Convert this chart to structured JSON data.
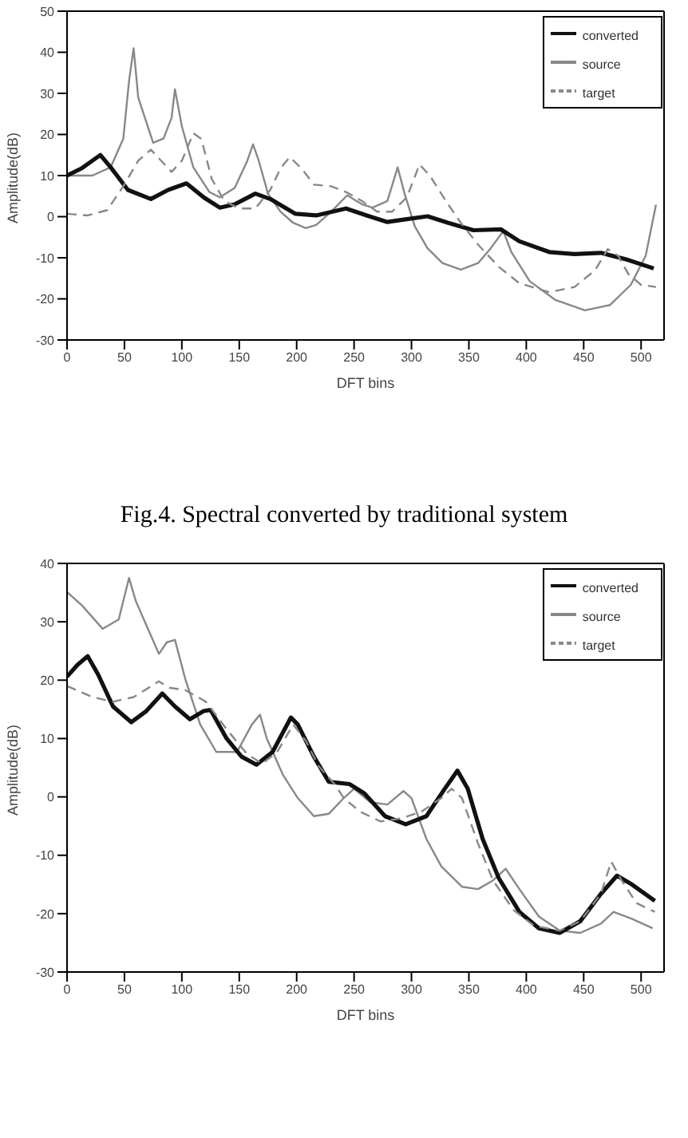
{
  "chart_data": [
    {
      "type": "line",
      "xlabel": "DFT bins",
      "ylabel": "Amplitude(dB)",
      "xlim": [
        0,
        520
      ],
      "ylim": [
        -30,
        50
      ],
      "xticks": [
        0,
        50,
        100,
        150,
        200,
        250,
        300,
        350,
        400,
        450,
        500
      ],
      "yticks": [
        -30,
        -20,
        -10,
        0,
        10,
        20,
        30,
        40,
        50
      ],
      "grid": false,
      "legend": "top right",
      "marker": "none",
      "annotations": [
        "Fig.4. Spectral converted by traditional system"
      ],
      "series": [
        {
          "name": "source",
          "color": "#888888",
          "line_style": "solid",
          "x": [
            0,
            22,
            38,
            49,
            54,
            58,
            62,
            75,
            84,
            91,
            94,
            100,
            110,
            124,
            133,
            146,
            157,
            162,
            167,
            175,
            186,
            197,
            208,
            217,
            230,
            244,
            257,
            266,
            279,
            288,
            294,
            303,
            314,
            327,
            343,
            358,
            369,
            380,
            387,
            403,
            425,
            451,
            473,
            491,
            504,
            513
          ],
          "values": [
            10,
            10,
            12,
            19,
            33,
            41,
            29,
            18,
            19,
            24,
            31,
            22,
            12,
            6,
            4.7,
            7,
            13.6,
            17.6,
            13.6,
            5.6,
            1.2,
            -1.5,
            -2.8,
            -2,
            1.2,
            5.2,
            3,
            2.2,
            3.8,
            12,
            5.6,
            -2.4,
            -7.7,
            -11.3,
            -12.9,
            -11.3,
            -7.7,
            -3.5,
            -8.6,
            -15.7,
            -20.2,
            -22.8,
            -21.5,
            -16.6,
            -9.5,
            2.9
          ]
        },
        {
          "name": "converted",
          "color": "#111111",
          "line_style": "solid",
          "x": [
            0,
            13,
            29,
            38,
            53,
            73,
            88,
            104,
            119,
            133,
            146,
            164,
            177,
            199,
            217,
            243,
            261,
            279,
            296,
            314,
            332,
            354,
            378,
            394,
            420,
            442,
            465,
            487,
            511
          ],
          "values": [
            10,
            11.8,
            15,
            12,
            6.5,
            4.3,
            6.5,
            8.1,
            4.7,
            2.2,
            3,
            5.6,
            4.3,
            0.7,
            0.3,
            2,
            0.3,
            -1.3,
            -0.6,
            0.1,
            -1.5,
            -3.3,
            -3.1,
            -6,
            -8.6,
            -9.1,
            -8.8,
            -10.4,
            -12.6
          ]
        },
        {
          "name": "target",
          "color": "#888888",
          "line_style": "dashed",
          "x": [
            0,
            18,
            35,
            49,
            62,
            73,
            82,
            91,
            100,
            110,
            117,
            126,
            137,
            150,
            164,
            177,
            186,
            194,
            204,
            215,
            230,
            243,
            257,
            270,
            283,
            296,
            307,
            316,
            330,
            343,
            358,
            376,
            394,
            420,
            442,
            460,
            471,
            480,
            489,
            500,
            513
          ],
          "values": [
            0.7,
            0.3,
            1.6,
            7.4,
            13.6,
            16.3,
            13.6,
            10.9,
            13.6,
            20.3,
            18.9,
            9.2,
            3.8,
            2,
            2,
            6.5,
            11.8,
            14.5,
            11.8,
            7.8,
            7.4,
            6,
            3.8,
            1.2,
            1.2,
            4.7,
            12.7,
            10,
            3.8,
            -1.5,
            -6.8,
            -12.2,
            -16.2,
            -18.4,
            -17.1,
            -13,
            -7.9,
            -9.5,
            -14,
            -16.6,
            -17.1
          ]
        }
      ]
    },
    {
      "type": "line",
      "xlabel": "DFT bins",
      "ylabel": "Amplitude(dB)",
      "xlim": [
        0,
        520
      ],
      "ylim": [
        -30,
        40
      ],
      "xticks": [
        0,
        50,
        100,
        150,
        200,
        250,
        300,
        350,
        400,
        450,
        500
      ],
      "yticks": [
        -30,
        -20,
        -10,
        0,
        10,
        20,
        30,
        40
      ],
      "grid": false,
      "legend": "top right",
      "marker": "none",
      "series": [
        {
          "name": "source",
          "color": "#888888",
          "line_style": "solid",
          "x": [
            0,
            13,
            31,
            45,
            54,
            60,
            72,
            80,
            87,
            94,
            103,
            116,
            130,
            148,
            161,
            168,
            174,
            188,
            201,
            215,
            228,
            241,
            250,
            264,
            279,
            293,
            300,
            313,
            326,
            344,
            358,
            371,
            382,
            394,
            411,
            429,
            447,
            465,
            476,
            492,
            510
          ],
          "values": [
            35.1,
            32.8,
            28.8,
            30.4,
            37.5,
            33.5,
            28.1,
            24.5,
            26.5,
            26.9,
            20.2,
            12.4,
            7.7,
            7.7,
            12.4,
            14.1,
            10,
            3.8,
            -0.2,
            -3.3,
            -2.9,
            -0.2,
            1.4,
            -0.9,
            -1.3,
            1,
            -0.2,
            -7.2,
            -11.9,
            -15.4,
            -15.8,
            -14.3,
            -12.3,
            -15.8,
            -20.5,
            -22.9,
            -23.3,
            -21.7,
            -19.7,
            -20.9,
            -22.5
          ]
        },
        {
          "name": "converted",
          "color": "#111111",
          "line_style": "solid",
          "x": [
            0,
            9,
            18,
            27,
            40,
            56,
            69,
            83,
            94,
            107,
            119,
            125,
            139,
            152,
            165,
            179,
            195,
            201,
            215,
            228,
            246,
            259,
            277,
            295,
            313,
            329,
            340,
            349,
            362,
            376,
            394,
            411,
            429,
            447,
            465,
            479,
            492,
            512
          ],
          "values": [
            20.6,
            22.6,
            24.1,
            21,
            15.5,
            12.8,
            14.7,
            17.7,
            15.5,
            13.3,
            14.7,
            14.9,
            10,
            6.9,
            5.5,
            7.7,
            13.6,
            12.4,
            6.9,
            2.6,
            2.2,
            0.6,
            -3.3,
            -4.7,
            -3.3,
            1.4,
            4.5,
            1.4,
            -7.2,
            -13.9,
            -19.7,
            -22.5,
            -23.3,
            -21.3,
            -16.6,
            -13.5,
            -15,
            -17.8
          ]
        },
        {
          "name": "target",
          "color": "#888888",
          "line_style": "dashed",
          "x": [
            0,
            22,
            40,
            58,
            80,
            89,
            103,
            121,
            139,
            157,
            170,
            183,
            197,
            208,
            219,
            233,
            241,
            255,
            273,
            291,
            309,
            326,
            335,
            344,
            358,
            371,
            389,
            407,
            429,
            447,
            465,
            474,
            483,
            496,
            512
          ],
          "values": [
            19,
            17.1,
            16.3,
            17.1,
            19.8,
            18.7,
            18.3,
            16.3,
            11.6,
            7.3,
            5.7,
            7.7,
            12.4,
            9.6,
            5.3,
            2.2,
            -0.2,
            -2.5,
            -4.2,
            -3.7,
            -2.5,
            -0.2,
            1.4,
            -0.2,
            -8,
            -14.3,
            -19.4,
            -22.1,
            -22.9,
            -21.3,
            -16.6,
            -11.1,
            -14.3,
            -18.2,
            -19.7
          ]
        }
      ]
    }
  ]
}
